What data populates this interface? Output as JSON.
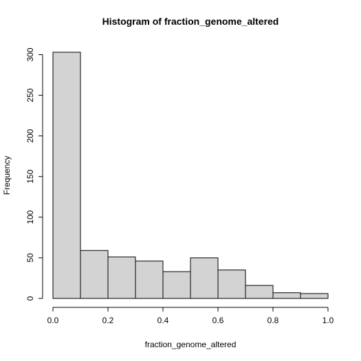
{
  "chart_data": {
    "type": "bar",
    "title": "Histogram of fraction_genome_altered",
    "xlabel": "fraction_genome_altered",
    "ylabel": "Frequency",
    "bins": [
      {
        "start": 0.0,
        "end": 0.1,
        "count": 303
      },
      {
        "start": 0.1,
        "end": 0.2,
        "count": 59
      },
      {
        "start": 0.2,
        "end": 0.3,
        "count": 51
      },
      {
        "start": 0.3,
        "end": 0.4,
        "count": 46
      },
      {
        "start": 0.4,
        "end": 0.5,
        "count": 33
      },
      {
        "start": 0.5,
        "end": 0.6,
        "count": 50
      },
      {
        "start": 0.6,
        "end": 0.7,
        "count": 35
      },
      {
        "start": 0.7,
        "end": 0.8,
        "count": 16
      },
      {
        "start": 0.8,
        "end": 0.9,
        "count": 7
      },
      {
        "start": 0.9,
        "end": 1.0,
        "count": 6
      }
    ],
    "xlim": [
      0.0,
      1.0
    ],
    "ylim": [
      0,
      300
    ],
    "x_ticks": [
      "0.0",
      "0.2",
      "0.4",
      "0.6",
      "0.8",
      "1.0"
    ],
    "y_ticks": [
      "0",
      "50",
      "100",
      "150",
      "200",
      "250",
      "300"
    ],
    "grid": false,
    "colors": {
      "bar_fill": "#d3d3d3",
      "bar_stroke": "#000000"
    }
  }
}
